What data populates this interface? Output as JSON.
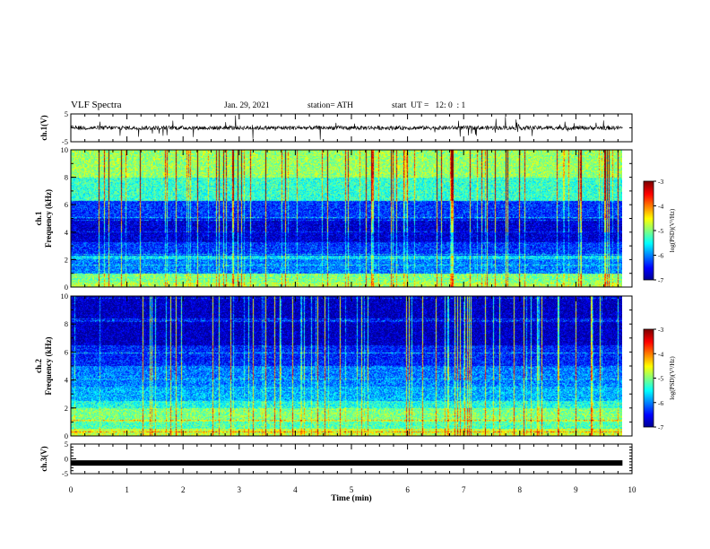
{
  "header": {
    "title": "VLF Spectra",
    "date": "Jan. 29, 2021",
    "station": "station= ATH",
    "start": "start  UT =   12: 0  : 1"
  },
  "chart_data": [
    {
      "type": "line",
      "panel": "ch1-waveform",
      "ylabel": "ch.1(V)",
      "ylim": [
        -5,
        5
      ],
      "yticks": [
        "5",
        "-5"
      ],
      "xlim": [
        0,
        10
      ],
      "x_end_data": 9.83,
      "series": [
        {
          "baseline": 0,
          "amplitude_typical": 1.5,
          "spike_max": 5
        }
      ]
    },
    {
      "type": "heatmap",
      "panel": "ch1-spectrogram",
      "ylabel_line1": "ch.1",
      "ylabel_line2": "Frequency (kHz)",
      "ylim": [
        0,
        10
      ],
      "yticks": [
        "0",
        "2",
        "4",
        "6",
        "8",
        "10"
      ],
      "xlim": [
        0,
        10
      ],
      "x_end_data": 9.83,
      "bands_khz": [
        {
          "from": 0.0,
          "to": 0.3,
          "level": -4.8
        },
        {
          "from": 0.3,
          "to": 1.0,
          "level": -5.0
        },
        {
          "from": 1.0,
          "to": 2.0,
          "level": -6.0
        },
        {
          "from": 2.0,
          "to": 2.3,
          "level": -5.6
        },
        {
          "from": 2.3,
          "to": 3.3,
          "level": -6.3
        },
        {
          "from": 3.3,
          "to": 5.0,
          "level": -6.7
        },
        {
          "from": 5.0,
          "to": 6.3,
          "level": -6.3
        },
        {
          "from": 6.3,
          "to": 8.0,
          "level": -5.3
        },
        {
          "from": 8.0,
          "to": 10.0,
          "level": -4.9
        }
      ],
      "colorbar": {
        "label": "log(PSD)(V²/Hz)",
        "range": [
          -7,
          -3
        ],
        "ticks": [
          "-3",
          "-4",
          "-5",
          "-6",
          "-7"
        ]
      }
    },
    {
      "type": "heatmap",
      "panel": "ch2-spectrogram",
      "ylabel_line1": "ch.2",
      "ylabel_line2": "Frequency (kHz)",
      "ylim": [
        0,
        10
      ],
      "yticks": [
        "0",
        "2",
        "4",
        "6",
        "8",
        "10"
      ],
      "xlim": [
        0,
        10
      ],
      "x_end_data": 9.83,
      "bands_khz": [
        {
          "from": 0.0,
          "to": 0.5,
          "level": -4.7
        },
        {
          "from": 0.5,
          "to": 1.0,
          "level": -5.2
        },
        {
          "from": 1.0,
          "to": 2.0,
          "level": -5.0
        },
        {
          "from": 2.0,
          "to": 2.5,
          "level": -5.4
        },
        {
          "from": 2.5,
          "to": 3.5,
          "level": -5.8
        },
        {
          "from": 3.5,
          "to": 5.0,
          "level": -6.0
        },
        {
          "from": 5.0,
          "to": 6.5,
          "level": -6.4
        },
        {
          "from": 6.5,
          "to": 10.0,
          "level": -6.8
        }
      ],
      "colorbar": {
        "label": "log(PSD)(V²/Hz)",
        "range": [
          -7,
          -3
        ],
        "ticks": [
          "-3",
          "-4",
          "-5",
          "-6",
          "-7"
        ]
      }
    },
    {
      "type": "line",
      "panel": "ch3-waveform",
      "ylabel": "ch.3(V)",
      "ylim": [
        -5,
        5
      ],
      "yticks": [
        "5",
        "0",
        "-5"
      ],
      "xlim": [
        0,
        10
      ],
      "x_end_data": 9.83,
      "series": [
        {
          "baseline": -1.4,
          "amplitude_typical": 0.4
        }
      ]
    }
  ],
  "xaxis": {
    "label": "Time (min)",
    "ticks": [
      "0",
      "1",
      "2",
      "3",
      "4",
      "5",
      "6",
      "7",
      "8",
      "9",
      "10"
    ]
  },
  "colors": {
    "jet": [
      "#00008f",
      "#0000ff",
      "#0080ff",
      "#00ffff",
      "#80ff80",
      "#ffff00",
      "#ff8000",
      "#ff0000",
      "#800000"
    ]
  }
}
